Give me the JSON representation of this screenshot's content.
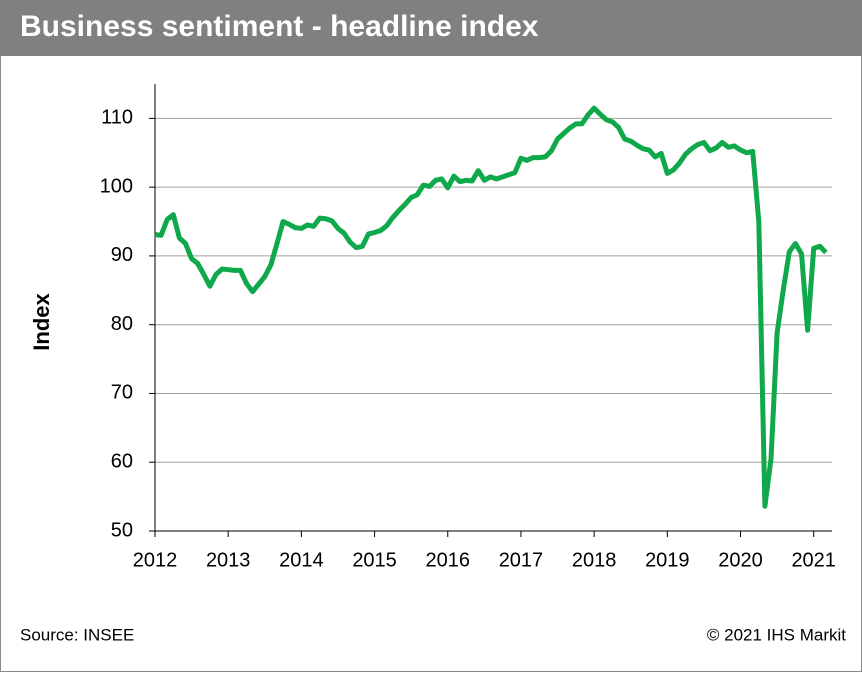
{
  "chart_data": {
    "type": "line",
    "title": "Business sentiment - headline index",
    "y_label": "Index",
    "source": "Source: INSEE",
    "copyright": "© 2021 IHS Markit",
    "x": [
      2012,
      2012.0833,
      2012.1667,
      2012.25,
      2012.3333,
      2012.4167,
      2012.5,
      2012.5833,
      2012.6667,
      2012.75,
      2012.8333,
      2012.9167,
      2013,
      2013.0833,
      2013.1667,
      2013.25,
      2013.3333,
      2013.4167,
      2013.5,
      2013.5833,
      2013.6667,
      2013.75,
      2013.8333,
      2013.9167,
      2014,
      2014.0833,
      2014.1667,
      2014.25,
      2014.3333,
      2014.4167,
      2014.5,
      2014.5833,
      2014.6667,
      2014.75,
      2014.8333,
      2014.9167,
      2015,
      2015.0833,
      2015.1667,
      2015.25,
      2015.3333,
      2015.4167,
      2015.5,
      2015.5833,
      2015.6667,
      2015.75,
      2015.8333,
      2015.9167,
      2016,
      2016.0833,
      2016.1667,
      2016.25,
      2016.3333,
      2016.4167,
      2016.5,
      2016.5833,
      2016.6667,
      2016.75,
      2016.8333,
      2016.9167,
      2017,
      2017.0833,
      2017.1667,
      2017.25,
      2017.3333,
      2017.4167,
      2017.5,
      2017.5833,
      2017.6667,
      2017.75,
      2017.8333,
      2017.9167,
      2018,
      2018.0833,
      2018.1667,
      2018.25,
      2018.3333,
      2018.4167,
      2018.5,
      2018.5833,
      2018.6667,
      2018.75,
      2018.8333,
      2018.9167,
      2019,
      2019.0833,
      2019.1667,
      2019.25,
      2019.3333,
      2019.4167,
      2019.5,
      2019.5833,
      2019.6667,
      2019.75,
      2019.8333,
      2019.9167,
      2020,
      2020.0833,
      2020.1667,
      2020.25,
      2020.3333,
      2020.4167,
      2020.5,
      2020.5833,
      2020.6667,
      2020.75,
      2020.8333,
      2020.9167,
      2021,
      2021.0833,
      2021.1667
    ],
    "series": [
      {
        "name": "Business sentiment",
        "color": "#0fa84a",
        "values": [
          93.1,
          93.0,
          95.3,
          96.0,
          92.6,
          91.8,
          89.6,
          88.9,
          87.3,
          85.6,
          87.3,
          88.1,
          88.0,
          87.9,
          87.9,
          86.0,
          84.8,
          85.9,
          87.0,
          88.7,
          91.8,
          95.0,
          94.6,
          94.1,
          94.0,
          94.5,
          94.3,
          95.5,
          95.4,
          95.1,
          94.0,
          93.3,
          92.0,
          91.2,
          91.4,
          93.2,
          93.4,
          93.7,
          94.4,
          95.6,
          96.6,
          97.5,
          98.5,
          98.9,
          100.3,
          100.1,
          101.0,
          101.2,
          99.9,
          101.6,
          100.8,
          101.0,
          100.9,
          102.4,
          101.0,
          101.5,
          101.2,
          101.5,
          101.8,
          102.1,
          104.2,
          103.9,
          104.3,
          104.3,
          104.4,
          105.3,
          107.0,
          107.8,
          108.6,
          109.2,
          109.2,
          110.5,
          111.5,
          110.6,
          109.8,
          109.5,
          108.7,
          107.0,
          106.7,
          106.1,
          105.6,
          105.4,
          104.4,
          104.9,
          102.0,
          102.5,
          103.5,
          104.8,
          105.6,
          106.2,
          106.5,
          105.3,
          105.7,
          106.5,
          105.8,
          106.0,
          105.4,
          105.0,
          105.2,
          95.0,
          53.6,
          60.5,
          78.8,
          85.0,
          90.6,
          91.8,
          90.3,
          79.2,
          91.1,
          91.4,
          90.5
        ]
      }
    ],
    "xlim": [
      2012,
      2021.25
    ],
    "xticks": [
      2012,
      2013,
      2014,
      2015,
      2016,
      2017,
      2018,
      2019,
      2020,
      2021
    ],
    "ylim": [
      50,
      115
    ],
    "yticks": [
      50,
      60,
      70,
      80,
      90,
      100,
      110
    ],
    "grid": true
  }
}
